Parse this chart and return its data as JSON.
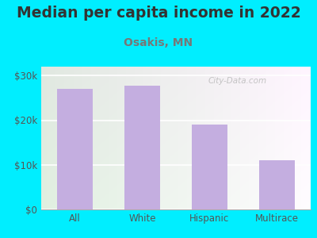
{
  "title": "Median per capita income in 2022",
  "subtitle": "Osakis, MN",
  "categories": [
    "All",
    "White",
    "Hispanic",
    "Multirace"
  ],
  "values": [
    27000,
    27700,
    19000,
    11000
  ],
  "bar_color": "#c4aee0",
  "title_fontsize": 13.5,
  "title_color": "#333333",
  "subtitle_fontsize": 10,
  "subtitle_color": "#777777",
  "tick_label_color": "#555555",
  "ytick_labels": [
    "$0",
    "$10k",
    "$20k",
    "$30k"
  ],
  "ytick_values": [
    0,
    10000,
    20000,
    30000
  ],
  "ylim": [
    0,
    32000
  ],
  "bg_outer": "#00eeff",
  "watermark": "City-Data.com"
}
